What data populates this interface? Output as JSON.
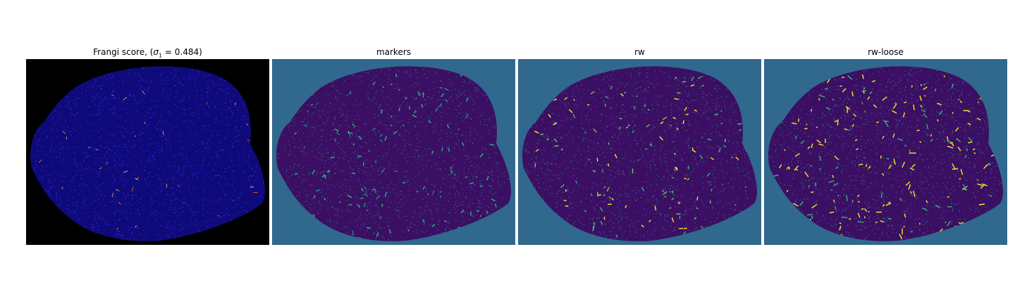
{
  "panels": [
    {
      "title_prefix": "Frangi score, (",
      "title_math": "σ",
      "title_sub": "1",
      "title_suffix": " = 0.484)",
      "background_color": "#000000",
      "base_fill": "#0f0a7a",
      "speckle_colors": [
        "#2a22d8",
        "#1b1499",
        "#3c33ff"
      ],
      "highlight_colors": [
        "#ffb040",
        "#ff6a00",
        "#ffd27a"
      ]
    },
    {
      "title": "markers",
      "background_color": "#31688e",
      "base_fill": "#3b0f63",
      "speckle_colors": [
        "#31688e",
        "#440154",
        "#2a788e"
      ],
      "highlight_colors": [
        "#35b779",
        "#21918c",
        "#35b779"
      ]
    },
    {
      "title": "rw",
      "background_color": "#31688e",
      "base_fill": "#3b0f63",
      "speckle_colors": [
        "#31688e",
        "#440154",
        "#2a788e"
      ],
      "highlight_colors": [
        "#35b779",
        "#6ece58",
        "#fde725"
      ]
    },
    {
      "title": "rw-loose",
      "background_color": "#31688e",
      "base_fill": "#3b0f63",
      "speckle_colors": [
        "#31688e",
        "#440154",
        "#2a788e"
      ],
      "highlight_colors": [
        "#fde725",
        "#fde725",
        "#35b779"
      ]
    }
  ]
}
